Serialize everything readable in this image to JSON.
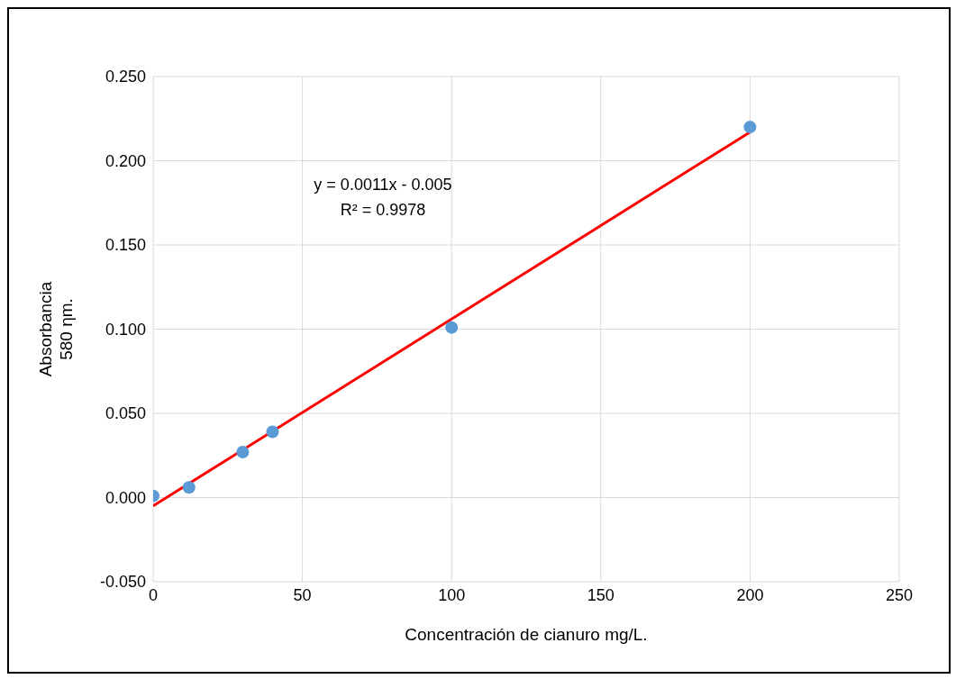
{
  "chart_data": {
    "type": "scatter",
    "xlabel": "Concentración de cianuro mg/L.",
    "ylabel": "Absorbancia\n580 ηm.",
    "x": [
      0,
      12,
      30,
      40,
      100,
      200
    ],
    "series": [
      {
        "marker": "circle",
        "color": "#5b9bd5",
        "values": [
          0.001,
          0.006,
          0.027,
          0.039,
          0.101,
          0.22
        ]
      },
      {
        "type": "line",
        "color": "#ff0000",
        "x": [
          0,
          200
        ],
        "values": [
          -0.005,
          0.217
        ]
      }
    ],
    "xlim": [
      0,
      250
    ],
    "xticks": [
      0,
      50,
      100,
      150,
      200,
      250
    ],
    "ylim": [
      -0.05,
      0.25
    ],
    "yticks": [
      {
        "value": -0.05,
        "label": "-0.050"
      },
      {
        "value": 0,
        "label": "0.000"
      },
      {
        "value": 0.05,
        "label": "0.050"
      },
      {
        "value": 0.1,
        "label": "0.100"
      },
      {
        "value": 0.15,
        "label": "0.150"
      },
      {
        "value": 0.2,
        "label": "0.200"
      },
      {
        "value": 0.25,
        "label": "0.250"
      }
    ],
    "grid": true,
    "line_style": "solid",
    "legend": false,
    "annotations": [
      "y = 0.0011x - 0.005",
      "R² = 0.9978"
    ]
  }
}
